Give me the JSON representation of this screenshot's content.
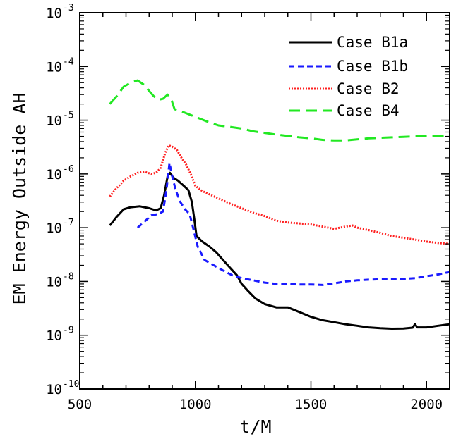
{
  "chart_data": {
    "type": "line",
    "xlabel": "t/M",
    "ylabel": "EM Energy Outside AH",
    "xlim": [
      500,
      2100
    ],
    "ylim": [
      1e-10,
      0.001
    ],
    "yscale": "log",
    "xticks": [
      500,
      1000,
      1500,
      2000
    ],
    "xtick_labels": [
      "500",
      "1000",
      "1500",
      "2000"
    ],
    "yticks": [
      1e-10,
      1e-09,
      1e-08,
      1e-07,
      1e-06,
      1e-05,
      0.0001,
      0.001
    ],
    "ytick_labels": [
      {
        "base": "10",
        "exp": "-10"
      },
      {
        "base": "10",
        "exp": "-9"
      },
      {
        "base": "10",
        "exp": "-8"
      },
      {
        "base": "10",
        "exp": "-7"
      },
      {
        "base": "10",
        "exp": "-6"
      },
      {
        "base": "10",
        "exp": "-5"
      },
      {
        "base": "10",
        "exp": "-4"
      },
      {
        "base": "10",
        "exp": "-3"
      }
    ],
    "grid": false,
    "legend_position": "top-right",
    "series": [
      {
        "name": "Case B1a",
        "color": "#000000",
        "dash": "solid",
        "points": [
          [
            630,
            1.1e-07
          ],
          [
            660,
            1.6e-07
          ],
          [
            690,
            2.2e-07
          ],
          [
            720,
            2.4e-07
          ],
          [
            760,
            2.5e-07
          ],
          [
            800,
            2.3e-07
          ],
          [
            830,
            2.1e-07
          ],
          [
            850,
            2.3e-07
          ],
          [
            865,
            4e-07
          ],
          [
            880,
            9e-07
          ],
          [
            890,
            1.05e-06
          ],
          [
            905,
            8.5e-07
          ],
          [
            925,
            7.5e-07
          ],
          [
            950,
            6e-07
          ],
          [
            970,
            5e-07
          ],
          [
            985,
            3e-07
          ],
          [
            995,
            1.5e-07
          ],
          [
            1005,
            7e-08
          ],
          [
            1030,
            5.5e-08
          ],
          [
            1060,
            4.5e-08
          ],
          [
            1090,
            3.5e-08
          ],
          [
            1120,
            2.5e-08
          ],
          [
            1150,
            1.8e-08
          ],
          [
            1180,
            1.3e-08
          ],
          [
            1200,
            9e-09
          ],
          [
            1230,
            6.5e-09
          ],
          [
            1260,
            4.8e-09
          ],
          [
            1300,
            3.8e-09
          ],
          [
            1350,
            3.3e-09
          ],
          [
            1400,
            3.3e-09
          ],
          [
            1450,
            2.7e-09
          ],
          [
            1500,
            2.2e-09
          ],
          [
            1550,
            1.9e-09
          ],
          [
            1600,
            1.75e-09
          ],
          [
            1650,
            1.6e-09
          ],
          [
            1700,
            1.5e-09
          ],
          [
            1750,
            1.4e-09
          ],
          [
            1800,
            1.35e-09
          ],
          [
            1850,
            1.32e-09
          ],
          [
            1900,
            1.33e-09
          ],
          [
            1940,
            1.38e-09
          ],
          [
            1950,
            1.6e-09
          ],
          [
            1960,
            1.4e-09
          ],
          [
            2000,
            1.4e-09
          ],
          [
            2050,
            1.5e-09
          ],
          [
            2100,
            1.6e-09
          ]
        ]
      },
      {
        "name": "Case B1b",
        "color": "#1a1aff",
        "dash": "dashed",
        "points": [
          [
            750,
            1e-07
          ],
          [
            780,
            1.3e-07
          ],
          [
            810,
            1.7e-07
          ],
          [
            840,
            1.8e-07
          ],
          [
            860,
            2e-07
          ],
          [
            875,
            5e-07
          ],
          [
            888,
            1.6e-06
          ],
          [
            900,
            9e-07
          ],
          [
            915,
            5e-07
          ],
          [
            935,
            3e-07
          ],
          [
            955,
            2.2e-07
          ],
          [
            975,
            1.8e-07
          ],
          [
            990,
            1e-07
          ],
          [
            1010,
            4.5e-08
          ],
          [
            1040,
            2.5e-08
          ],
          [
            1080,
            2e-08
          ],
          [
            1120,
            1.6e-08
          ],
          [
            1160,
            1.3e-08
          ],
          [
            1200,
            1.15e-08
          ],
          [
            1250,
            1.05e-08
          ],
          [
            1300,
            9.5e-09
          ],
          [
            1350,
            9e-09
          ],
          [
            1400,
            9e-09
          ],
          [
            1450,
            8.8e-09
          ],
          [
            1500,
            8.8e-09
          ],
          [
            1550,
            8.6e-09
          ],
          [
            1600,
            9.2e-09
          ],
          [
            1650,
            1e-08
          ],
          [
            1700,
            1.05e-08
          ],
          [
            1750,
            1.08e-08
          ],
          [
            1800,
            1.1e-08
          ],
          [
            1850,
            1.1e-08
          ],
          [
            1900,
            1.12e-08
          ],
          [
            1950,
            1.15e-08
          ],
          [
            2000,
            1.25e-08
          ],
          [
            2050,
            1.35e-08
          ],
          [
            2100,
            1.5e-08
          ]
        ]
      },
      {
        "name": "Case B2",
        "color": "#ff2020",
        "dash": "dotted",
        "points": [
          [
            630,
            3.8e-07
          ],
          [
            660,
            5.5e-07
          ],
          [
            690,
            7.5e-07
          ],
          [
            720,
            9e-07
          ],
          [
            750,
            1.05e-06
          ],
          [
            780,
            1.1e-06
          ],
          [
            810,
            1e-06
          ],
          [
            830,
            1.05e-06
          ],
          [
            850,
            1.3e-06
          ],
          [
            870,
            2.5e-06
          ],
          [
            885,
            3.4e-06
          ],
          [
            900,
            3.2e-06
          ],
          [
            920,
            2.8e-06
          ],
          [
            940,
            2e-06
          ],
          [
            960,
            1.5e-06
          ],
          [
            980,
            1e-06
          ],
          [
            1000,
            6e-07
          ],
          [
            1030,
            4.8e-07
          ],
          [
            1060,
            4.2e-07
          ],
          [
            1100,
            3.5e-07
          ],
          [
            1150,
            2.8e-07
          ],
          [
            1200,
            2.3e-07
          ],
          [
            1250,
            1.9e-07
          ],
          [
            1300,
            1.65e-07
          ],
          [
            1350,
            1.35e-07
          ],
          [
            1400,
            1.25e-07
          ],
          [
            1450,
            1.2e-07
          ],
          [
            1500,
            1.15e-07
          ],
          [
            1550,
            1.05e-07
          ],
          [
            1600,
            9.5e-08
          ],
          [
            1650,
            1.05e-07
          ],
          [
            1680,
            1.1e-07
          ],
          [
            1700,
            1e-07
          ],
          [
            1750,
            9e-08
          ],
          [
            1800,
            8e-08
          ],
          [
            1850,
            7e-08
          ],
          [
            1900,
            6.5e-08
          ],
          [
            1950,
            6e-08
          ],
          [
            2000,
            5.5e-08
          ],
          [
            2050,
            5.2e-08
          ],
          [
            2100,
            5e-08
          ]
        ]
      },
      {
        "name": "Case B4",
        "color": "#22e822",
        "dash": "long-dashed",
        "points": [
          [
            630,
            2e-05
          ],
          [
            660,
            2.8e-05
          ],
          [
            690,
            4.2e-05
          ],
          [
            720,
            5e-05
          ],
          [
            750,
            5.5e-05
          ],
          [
            780,
            4.5e-05
          ],
          [
            800,
            3.5e-05
          ],
          [
            820,
            2.8e-05
          ],
          [
            840,
            2.4e-05
          ],
          [
            860,
            2.5e-05
          ],
          [
            880,
            3e-05
          ],
          [
            895,
            2.5e-05
          ],
          [
            910,
            1.6e-05
          ],
          [
            950,
            1.4e-05
          ],
          [
            1000,
            1.15e-05
          ],
          [
            1050,
            9.5e-06
          ],
          [
            1100,
            8e-06
          ],
          [
            1150,
            7.5e-06
          ],
          [
            1200,
            7e-06
          ],
          [
            1250,
            6.2e-06
          ],
          [
            1300,
            5.8e-06
          ],
          [
            1350,
            5.4e-06
          ],
          [
            1400,
            5.1e-06
          ],
          [
            1450,
            4.8e-06
          ],
          [
            1500,
            4.6e-06
          ],
          [
            1550,
            4.3e-06
          ],
          [
            1600,
            4.2e-06
          ],
          [
            1650,
            4.2e-06
          ],
          [
            1700,
            4.4e-06
          ],
          [
            1750,
            4.6e-06
          ],
          [
            1800,
            4.7e-06
          ],
          [
            1850,
            4.8e-06
          ],
          [
            1900,
            4.9e-06
          ],
          [
            1950,
            5e-06
          ],
          [
            2000,
            5e-06
          ],
          [
            2050,
            5.1e-06
          ],
          [
            2100,
            5.2e-06
          ]
        ]
      }
    ]
  }
}
